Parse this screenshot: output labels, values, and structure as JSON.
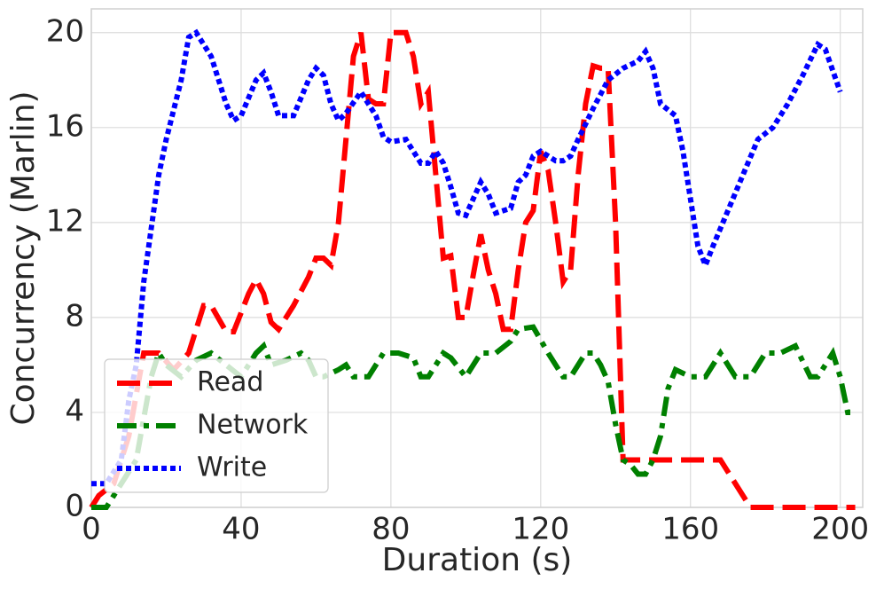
{
  "chart_data": {
    "type": "line",
    "xlabel": "Duration (s)",
    "ylabel": "Concurrency (Marlin)",
    "xlim": [
      0,
      206
    ],
    "ylim": [
      0,
      21
    ],
    "xticks": [
      0,
      40,
      80,
      120,
      160,
      200
    ],
    "yticks": [
      0,
      4,
      8,
      12,
      16,
      20
    ],
    "grid": true,
    "legend": "lower left",
    "series": [
      {
        "name": "Read",
        "color": "#ff0000",
        "dash": "dashed",
        "x": [
          0,
          2,
          6,
          10,
          14,
          18,
          22,
          26,
          30,
          32,
          36,
          38,
          42,
          44,
          46,
          48,
          50,
          54,
          58,
          60,
          62,
          64,
          66,
          68,
          70,
          72,
          74,
          76,
          78,
          80,
          84,
          86,
          88,
          90,
          92,
          94,
          96,
          98,
          100,
          102,
          104,
          106,
          108,
          110,
          112,
          114,
          116,
          118,
          120,
          122,
          124,
          126,
          128,
          130,
          132,
          134,
          136,
          138,
          140,
          142,
          144,
          168,
          172,
          176,
          204
        ],
        "values": [
          0,
          0.5,
          1,
          3,
          6.5,
          6.5,
          5.8,
          6.5,
          8.5,
          8.5,
          7.4,
          7.4,
          9,
          9.6,
          9,
          7.8,
          7.5,
          8.5,
          9.7,
          10.5,
          10.5,
          10.2,
          12,
          15.5,
          19,
          20,
          17.2,
          17,
          17,
          20,
          20,
          19,
          17,
          17.5,
          14,
          10.5,
          10.6,
          8,
          8,
          9.8,
          11.5,
          10,
          9,
          7.5,
          7.5,
          10,
          12,
          12.5,
          15,
          14.2,
          12,
          9.5,
          10,
          14,
          17,
          18.6,
          18.5,
          18.5,
          12,
          2,
          2,
          2,
          1,
          0,
          0
        ]
      },
      {
        "name": "Network",
        "color": "#008000",
        "dash": "dashdot",
        "x": [
          0,
          4,
          8,
          12,
          16,
          18,
          20,
          24,
          28,
          32,
          36,
          40,
          44,
          46,
          48,
          52,
          56,
          58,
          60,
          62,
          66,
          68,
          70,
          74,
          78,
          82,
          86,
          88,
          90,
          94,
          96,
          100,
          104,
          108,
          112,
          114,
          118,
          122,
          126,
          128,
          132,
          134,
          136,
          138,
          140,
          142,
          144,
          146,
          148,
          150,
          152,
          154,
          156,
          160,
          164,
          168,
          172,
          176,
          180,
          184,
          188,
          192,
          194,
          198,
          200,
          202,
          204
        ],
        "values": [
          0,
          0,
          1,
          2,
          5.5,
          6.5,
          6,
          5.5,
          6.2,
          6.5,
          6,
          5.5,
          6.5,
          6.8,
          6,
          6.2,
          6.5,
          6.2,
          5.5,
          5.5,
          5.8,
          6,
          5.5,
          5.5,
          6.5,
          6.5,
          6.3,
          5.5,
          5.5,
          6.5,
          6.3,
          5.5,
          6.5,
          6.5,
          7,
          7.5,
          7.6,
          6.5,
          5.5,
          5.5,
          6.5,
          6.5,
          6,
          5.3,
          3.5,
          2,
          1.8,
          1.4,
          1.4,
          2,
          3,
          5,
          5.8,
          5.5,
          5.5,
          6.5,
          5.5,
          5.5,
          6.5,
          6.5,
          6.8,
          5.5,
          5.5,
          6.5,
          5.5,
          4,
          4
        ]
      },
      {
        "name": "Write",
        "color": "#0000ff",
        "dash": "dotted",
        "x": [
          0,
          4,
          8,
          10,
          12,
          14,
          18,
          20,
          24,
          26,
          28,
          32,
          34,
          36,
          38,
          40,
          44,
          46,
          48,
          50,
          54,
          58,
          60,
          62,
          64,
          66,
          68,
          72,
          74,
          76,
          78,
          80,
          84,
          86,
          88,
          90,
          92,
          94,
          96,
          98,
          100,
          104,
          106,
          108,
          112,
          114,
          116,
          118,
          120,
          124,
          126,
          128,
          130,
          134,
          138,
          142,
          146,
          148,
          150,
          152,
          156,
          158,
          162,
          164,
          166,
          170,
          174,
          178,
          182,
          186,
          190,
          194,
          196,
          200
        ],
        "values": [
          1,
          1,
          2,
          4.5,
          6,
          9.5,
          14,
          15.5,
          18,
          19.8,
          20,
          19,
          18,
          17,
          16.3,
          16.5,
          18,
          18.3,
          17.5,
          16.5,
          16.5,
          18,
          18.5,
          18.2,
          17,
          16.3,
          16.6,
          17.5,
          17,
          16.5,
          15.6,
          15.4,
          15.5,
          15,
          14.5,
          14.5,
          15,
          14.5,
          13.5,
          12.4,
          12.3,
          13.7,
          13.2,
          12.4,
          12.6,
          13.7,
          14,
          14.8,
          15,
          14.6,
          14.6,
          14.8,
          15.5,
          16.8,
          18,
          18.5,
          18.8,
          19.2,
          18.5,
          17,
          16.5,
          15,
          11,
          10.2,
          11,
          12.5,
          14,
          15.5,
          16,
          17,
          18.2,
          19.5,
          19.3,
          17.5
        ]
      }
    ]
  }
}
